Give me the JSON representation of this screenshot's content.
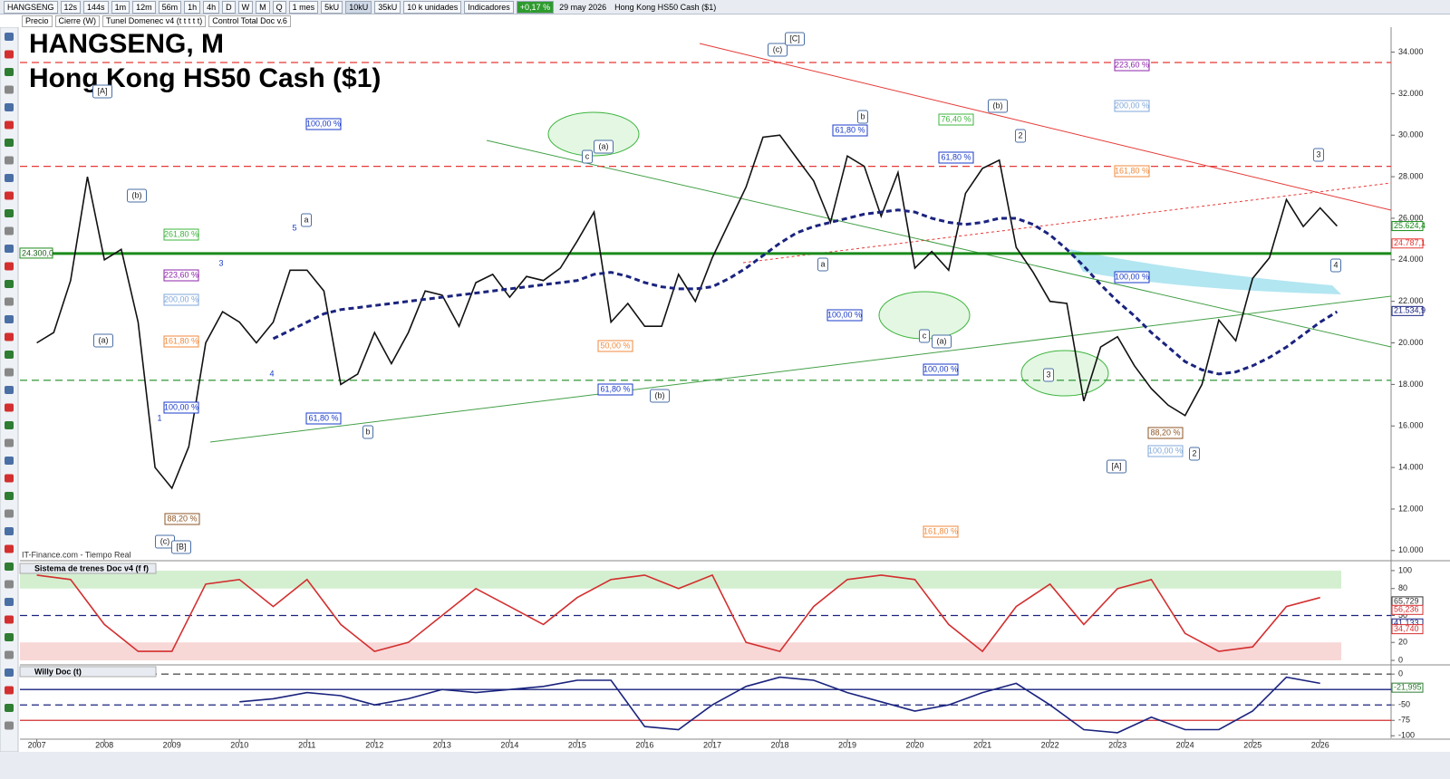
{
  "toolbar": [
    "HANGSENG",
    "12s",
    "144s",
    "1m",
    "12m",
    "56m",
    "1h",
    "4h",
    "D",
    "W",
    "M",
    "Q",
    "1 mes",
    "5kU",
    "10kU",
    "35kU",
    "10 k unidades",
    "Indicadores",
    "+0,17 %",
    "29 may 2026",
    "Hong Kong HS50 Cash ($1)"
  ],
  "legend_bar": [
    "Precio",
    "Cierre (W)",
    "Tunel Domenec v4 (t t t t t)",
    "Control Total Doc v.6"
  ],
  "chart_data": [
    {
      "type": "line",
      "title": "HANGSENG, M",
      "subtitle": "Hong Kong HS50 Cash ($1)",
      "source": "IT-Finance.com - Tiempo Real",
      "xlim": [
        2006.75,
        2027.05
      ],
      "ylim": [
        9600,
        35200
      ],
      "xticks": [
        2007,
        2008,
        2009,
        2010,
        2011,
        2012,
        2013,
        2014,
        2015,
        2016,
        2017,
        2018,
        2019,
        2020,
        2021,
        2022,
        2023,
        2024,
        2025,
        2026
      ],
      "yticks": [
        {
          "value": 10000,
          "label": "10.000"
        },
        {
          "value": 12000,
          "label": "12.000"
        },
        {
          "value": 14000,
          "label": "14.000"
        },
        {
          "value": 16000,
          "label": "16.000"
        },
        {
          "value": 18000,
          "label": "18.000"
        },
        {
          "value": 20000,
          "label": "20.000"
        },
        {
          "value": 22000,
          "label": "22.000"
        },
        {
          "value": 24000,
          "label": "24.000"
        },
        {
          "value": 26000,
          "label": "26.000"
        },
        {
          "value": 28000,
          "label": "28.000"
        },
        {
          "value": 30000,
          "label": "30.000"
        },
        {
          "value": 32000,
          "label": "32.000"
        },
        {
          "value": 34000,
          "label": "34.000"
        }
      ],
      "x": [
        2007.0,
        2007.25,
        2007.5,
        2007.75,
        2008.0,
        2008.25,
        2008.5,
        2008.75,
        2009.0,
        2009.25,
        2009.5,
        2009.75,
        2010.0,
        2010.25,
        2010.5,
        2010.75,
        2011.0,
        2011.25,
        2011.5,
        2011.75,
        2012.0,
        2012.25,
        2012.5,
        2012.75,
        2013.0,
        2013.25,
        2013.5,
        2013.75,
        2014.0,
        2014.25,
        2014.5,
        2014.75,
        2015.0,
        2015.25,
        2015.5,
        2015.75,
        2016.0,
        2016.25,
        2016.5,
        2016.75,
        2017.0,
        2017.25,
        2017.5,
        2017.75,
        2018.0,
        2018.25,
        2018.5,
        2018.75,
        2019.0,
        2019.25,
        2019.5,
        2019.75,
        2020.0,
        2020.25,
        2020.5,
        2020.75,
        2021.0,
        2021.25,
        2021.5,
        2021.75,
        2022.0,
        2022.25,
        2022.5,
        2022.75,
        2023.0,
        2023.25,
        2023.5,
        2023.75,
        2024.0,
        2024.25,
        2024.5,
        2024.75,
        2025.0,
        2025.25,
        2025.5,
        2025.75,
        2026.0,
        2026.25
      ],
      "series": [
        {
          "color": "#111111",
          "values": [
            20000,
            20500,
            23000,
            28000,
            24000,
            24500,
            21000,
            14000,
            13000,
            15000,
            20000,
            21500,
            21000,
            20000,
            21000,
            23500,
            23500,
            22500,
            18000,
            18500,
            20500,
            19000,
            20500,
            22500,
            22300,
            20800,
            22900,
            23300,
            22200,
            23200,
            23000,
            23600,
            24900,
            26300,
            21000,
            21900,
            20800,
            20800,
            23300,
            22000,
            24100,
            25800,
            27500,
            29900,
            30000,
            28900,
            27800,
            25800,
            29000,
            28500,
            26100,
            28200,
            23600,
            24400,
            23500,
            27200,
            28400,
            28800,
            24600,
            23400,
            22000,
            21900,
            17200,
            19800,
            20300,
            18900,
            17800,
            17000,
            16500,
            18000,
            21100,
            20100,
            23100,
            24100,
            26900,
            25600,
            26500,
            25624
          ]
        },
        {
          "color": "#1a237e",
          "dashed": true,
          "values": [
            null,
            null,
            null,
            null,
            null,
            null,
            null,
            null,
            null,
            null,
            null,
            null,
            null,
            null,
            20200,
            20600,
            21000,
            21400,
            21600,
            21700,
            21800,
            21900,
            22000,
            22100,
            22200,
            22300,
            22400,
            22500,
            22600,
            22700,
            22800,
            22900,
            23000,
            23300,
            23400,
            23200,
            22900,
            22700,
            22600,
            22600,
            22700,
            23100,
            23600,
            24200,
            24800,
            25300,
            25600,
            25800,
            26000,
            26200,
            26300,
            26400,
            26300,
            26000,
            25800,
            25700,
            25800,
            26000,
            26000,
            25700,
            25200,
            24500,
            23700,
            22800,
            22000,
            21300,
            20500,
            19800,
            19100,
            18700,
            18500,
            18600,
            18900,
            19300,
            19800,
            20400,
            21000,
            21500
          ]
        }
      ],
      "levels": [
        {
          "value": 24300,
          "label": "24.300,0",
          "color": "#1a8a1a"
        },
        {
          "value": 33500,
          "color": "#e53935",
          "dashed": true
        },
        {
          "value": 28500,
          "color": "#e53935",
          "dashed": true
        },
        {
          "value": 18200,
          "color": "#43a047",
          "dashed": true
        }
      ],
      "price_labels": [
        {
          "value": 25624.4,
          "label": "25.624,4",
          "color": "#1a8a1a"
        },
        {
          "value": 24787.1,
          "label": "24.787,1",
          "color": "#e53935"
        },
        {
          "value": 21534.9,
          "label": "21.534,9",
          "color": "#1a237e"
        }
      ],
      "annotations": [
        "[A]",
        "(b)",
        "(a)",
        "(c)",
        "[B]",
        "a",
        "b",
        "(a)",
        "c",
        "(b)",
        "(c)",
        "[C]",
        "b",
        "a",
        "(b)",
        "2",
        "c",
        "(a)",
        "3",
        "[A]",
        "2",
        "3",
        "4",
        "100,00 %",
        "261,80 %",
        "223,60 %",
        "200,00 %",
        "161,80 %",
        "100,00 %",
        "61,80 %",
        "76,40 %",
        "61,80 %",
        "100,00 %",
        "100,00 %",
        "223,60 %",
        "200,00 %",
        "161,80 %",
        "100,00 %",
        "61,80 %",
        "61,80 %",
        "50,00 %",
        "88,20 %",
        "100,00 %",
        "161,80 %",
        "88,20 %",
        "5",
        "3",
        "4",
        "1"
      ]
    },
    {
      "type": "line",
      "title": "Sistema de trenes Doc v4 (f f)",
      "xlim": [
        2006.75,
        2027.05
      ],
      "ylim": [
        -4,
        108
      ],
      "yticks": [
        0,
        20,
        50,
        80,
        100
      ],
      "x": [
        2007.0,
        2007.5,
        2008.0,
        2008.5,
        2009.0,
        2009.5,
        2010.0,
        2010.5,
        2011.0,
        2011.5,
        2012.0,
        2012.5,
        2013.0,
        2013.5,
        2014.0,
        2014.5,
        2015.0,
        2015.5,
        2016.0,
        2016.5,
        2017.0,
        2017.5,
        2018.0,
        2018.5,
        2019.0,
        2019.5,
        2020.0,
        2020.5,
        2021.0,
        2021.5,
        2022.0,
        2022.5,
        2023.0,
        2023.5,
        2024.0,
        2024.5,
        2025.0,
        2025.5,
        2026.0
      ],
      "series": [
        {
          "color": "#d32f2f",
          "values": [
            95,
            90,
            40,
            10,
            10,
            85,
            90,
            60,
            90,
            40,
            10,
            20,
            50,
            80,
            60,
            40,
            70,
            90,
            95,
            80,
            95,
            20,
            10,
            60,
            90,
            95,
            90,
            40,
            10,
            60,
            85,
            40,
            80,
            90,
            30,
            10,
            15,
            60,
            70
          ]
        }
      ],
      "bands": [
        {
          "from": 80,
          "to": 100,
          "color": "#d4efd0"
        },
        {
          "from": 0,
          "to": 20,
          "color": "#f8d7d7"
        }
      ],
      "levels": [
        {
          "value": 50,
          "color": "#1a237e",
          "dashed": true
        }
      ],
      "price_labels": [
        {
          "value": 65.729,
          "label": "65,729",
          "color": "#333333"
        },
        {
          "value": 56.236,
          "label": "56,236",
          "color": "#d32f2f"
        },
        {
          "value": 41.133,
          "label": "41,133",
          "color": "#1a237e"
        },
        {
          "value": 34.74,
          "label": "34,740",
          "color": "#d32f2f"
        }
      ]
    },
    {
      "type": "line",
      "title": "Willy Doc (t)",
      "xlim": [
        2006.75,
        2027.05
      ],
      "ylim": [
        -104,
        12
      ],
      "yticks": [
        0,
        -25,
        -50,
        -75,
        -100
      ],
      "x": [
        2007.0,
        2007.5,
        2008.0,
        2008.5,
        2009.0,
        2009.5,
        2010.0,
        2010.5,
        2011.0,
        2011.5,
        2012.0,
        2012.5,
        2013.0,
        2013.5,
        2014.0,
        2014.5,
        2015.0,
        2015.5,
        2016.0,
        2016.5,
        2017.0,
        2017.5,
        2018.0,
        2018.5,
        2019.0,
        2019.5,
        2020.0,
        2020.5,
        2021.0,
        2021.5,
        2022.0,
        2022.5,
        2023.0,
        2023.5,
        2024.0,
        2024.5,
        2025.0,
        2025.5,
        2026.0
      ],
      "series": [
        {
          "color": "#1a237e",
          "values": [
            null,
            null,
            null,
            null,
            null,
            null,
            -45,
            -40,
            -30,
            -35,
            -50,
            -40,
            -25,
            -30,
            -25,
            -20,
            -10,
            -10,
            -85,
            -90,
            -50,
            -20,
            -5,
            -10,
            -30,
            -45,
            -60,
            -50,
            -30,
            -15,
            -50,
            -90,
            -95,
            -70,
            -90,
            -90,
            -60,
            -5,
            -15
          ]
        }
      ],
      "levels": [
        {
          "value": 0,
          "color": "#555555",
          "dashed": true
        },
        {
          "value": -25,
          "color": "#1a237e"
        },
        {
          "value": -50,
          "color": "#1a237e",
          "dashed": true
        },
        {
          "value": -75,
          "color": "#d32f2f"
        }
      ],
      "price_labels": [
        {
          "value": -21.995,
          "label": "-21,995",
          "color": "#2e7d32"
        }
      ]
    }
  ]
}
